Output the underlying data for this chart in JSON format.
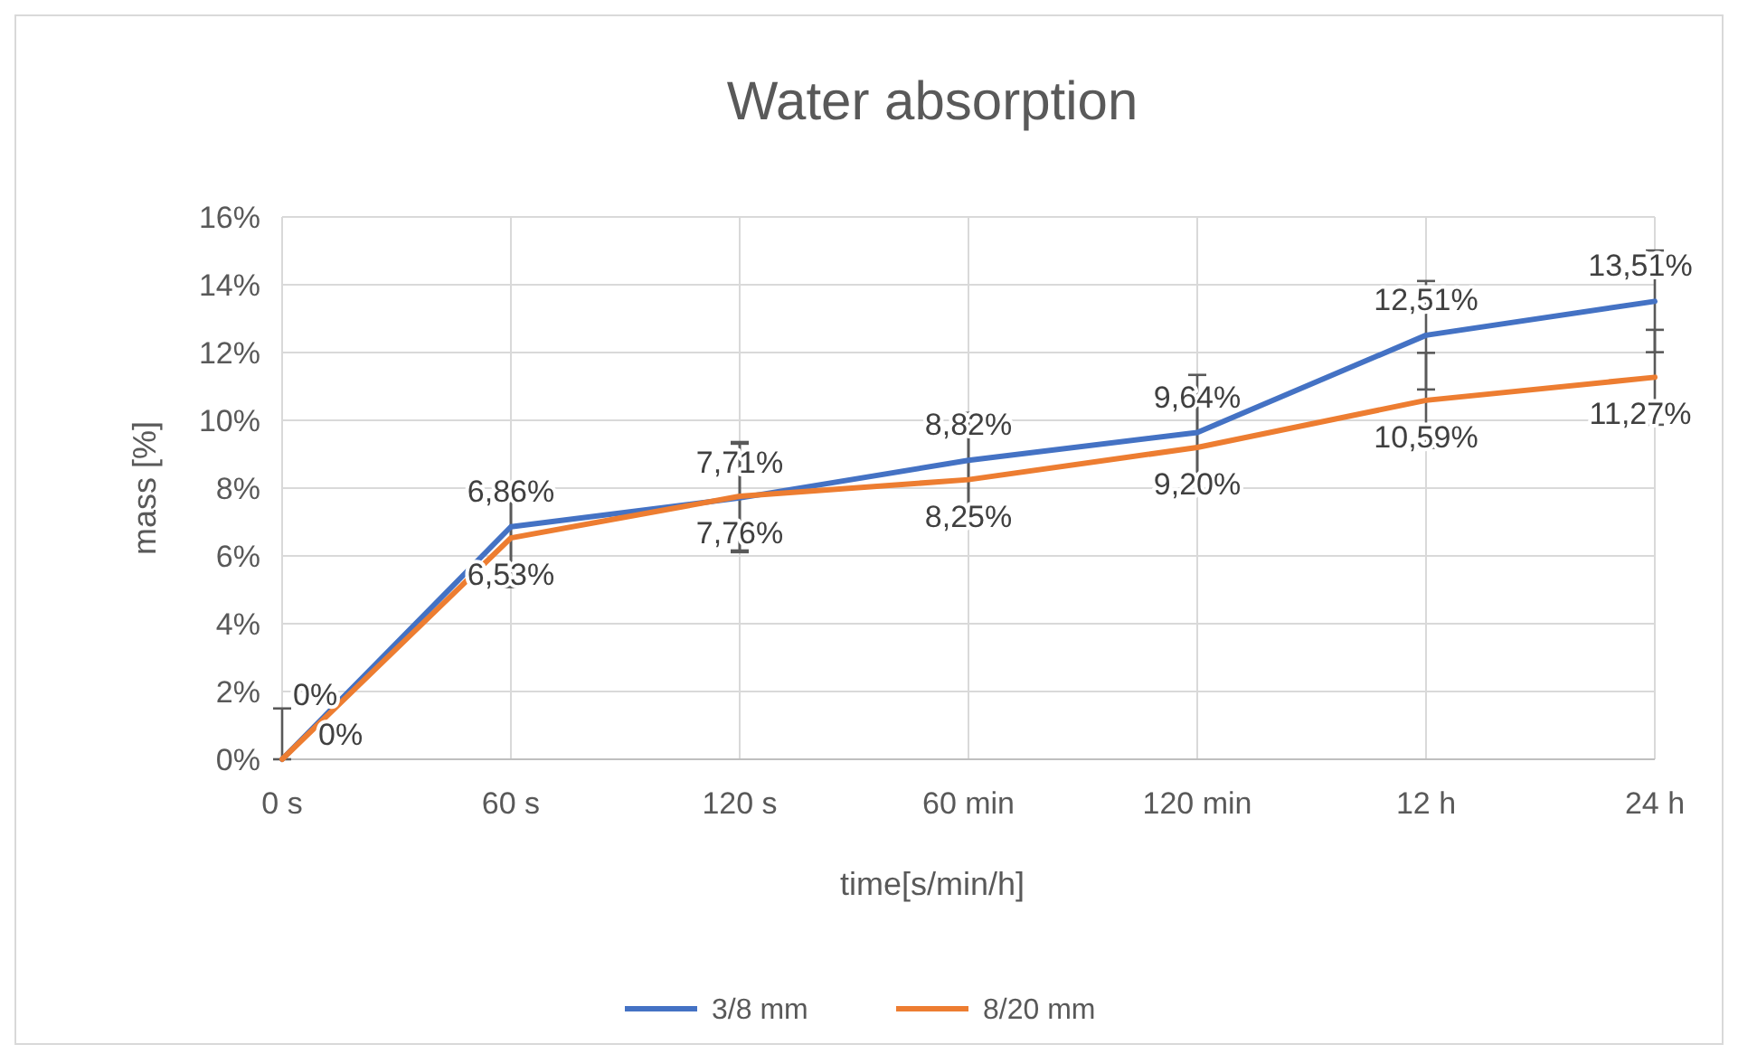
{
  "chart_data": {
    "type": "line",
    "title": "Water absorption",
    "xlabel": "time[s/min/h]",
    "ylabel": "mass [%]",
    "categories": [
      "0 s",
      "60 s",
      "120 s",
      "60 min",
      "120 min",
      "12 h",
      "24 h"
    ],
    "ylim": [
      0,
      16
    ],
    "yticks": [
      {
        "value": 0,
        "label": "0%"
      },
      {
        "value": 2,
        "label": "2%"
      },
      {
        "value": 4,
        "label": "4%"
      },
      {
        "value": 6,
        "label": "6%"
      },
      {
        "value": 8,
        "label": "8%"
      },
      {
        "value": 10,
        "label": "10%"
      },
      {
        "value": 12,
        "label": "12%"
      },
      {
        "value": 14,
        "label": "14%"
      },
      {
        "value": 16,
        "label": "16%"
      }
    ],
    "grid": true,
    "legend": "bottom",
    "marker": "none",
    "line_style": "solid",
    "series": [
      {
        "name": "3/8 mm",
        "color": "#4472c4",
        "values": [
          0,
          6.86,
          7.71,
          8.82,
          9.64,
          12.51,
          13.51
        ],
        "value_labels": [
          "0%",
          "6,86%",
          "7,71%",
          "8,82%",
          "9,64%",
          "12,51%",
          "13,51%"
        ],
        "errors": [
          [
            0,
            1.5
          ],
          1.07,
          1.6,
          1.4,
          1.7,
          1.6,
          1.5
        ]
      },
      {
        "name": "8/20 mm",
        "color": "#ed7d31",
        "values": [
          0,
          6.53,
          7.76,
          8.25,
          9.2,
          10.59,
          11.27
        ],
        "value_labels": [
          "0%",
          "6,53%",
          "7,76%",
          "8,25%",
          "9,20%",
          "10,59%",
          "11,27%"
        ],
        "errors": [
          null,
          1.45,
          1.6,
          1.4,
          1.3,
          1.4,
          1.4
        ]
      }
    ]
  }
}
